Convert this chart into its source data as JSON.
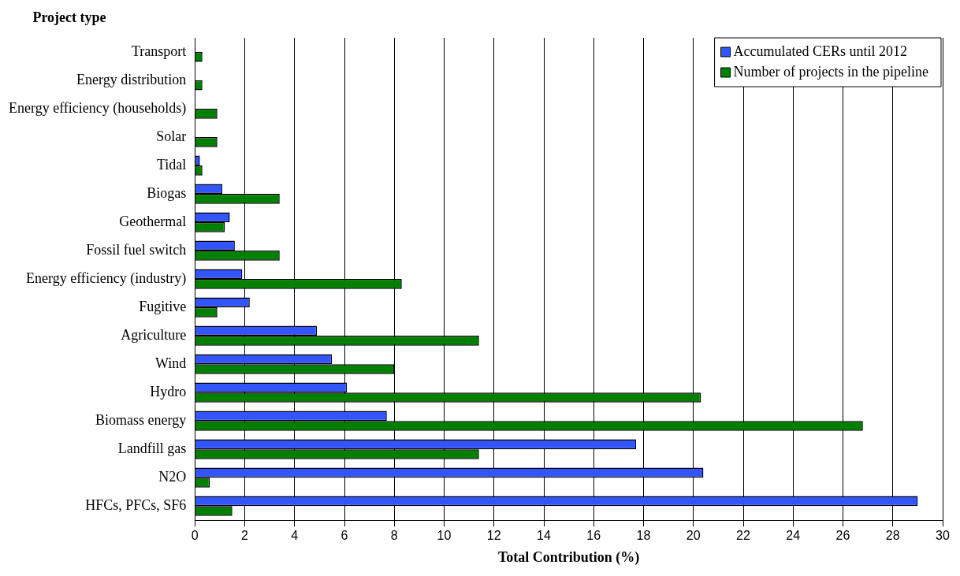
{
  "chart_data": {
    "type": "bar",
    "orientation": "horizontal",
    "ylabel": "Project type",
    "xlabel": "Total Contribution (%)",
    "categories": [
      "Transport",
      "Energy distribution",
      "Energy efficiency (households)",
      "Solar",
      "Tidal",
      "Biogas",
      "Geothermal",
      "Fossil fuel switch",
      "Energy efficiency (industry)",
      "Fugitive",
      "Agriculture",
      "Wind",
      "Hydro",
      "Biomass energy",
      "Landfill gas",
      "N2O",
      "HFCs, PFCs, SF6"
    ],
    "series": [
      {
        "name": "Accumulated CERs until 2012",
        "color": "#3355ff",
        "values": [
          null,
          null,
          null,
          null,
          0.2,
          1.1,
          1.4,
          1.6,
          1.9,
          2.2,
          4.9,
          5.5,
          6.1,
          7.7,
          17.7,
          20.4,
          29.0
        ]
      },
      {
        "name": "Number of projects in the pipeline",
        "color": "#008000",
        "values": [
          0.3,
          0.3,
          0.9,
          0.9,
          0.3,
          3.4,
          1.2,
          3.4,
          8.3,
          0.9,
          11.4,
          8.0,
          20.3,
          26.8,
          11.4,
          0.6,
          1.5
        ]
      }
    ],
    "xlim": [
      0,
      30
    ],
    "xticks": [
      0,
      2,
      4,
      6,
      8,
      10,
      12,
      14,
      16,
      18,
      20,
      22,
      24,
      26,
      28,
      30
    ],
    "grid": "x",
    "legend": "top right"
  }
}
